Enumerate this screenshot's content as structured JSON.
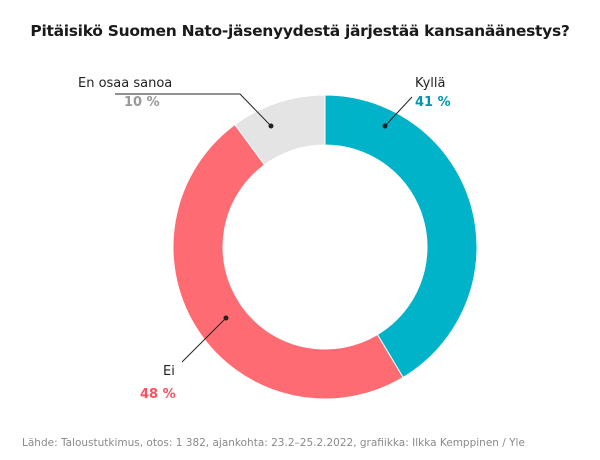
{
  "chart_data": {
    "type": "pie",
    "donut": true,
    "title": "Pitäisikö Suomen Nato-jäsenyydestä järjestää kansanäänestys?",
    "slices": [
      {
        "label": "Kyllä",
        "value": 41,
        "value_label": "41 %",
        "color": "#00b3c8",
        "label_color": "#0096ad"
      },
      {
        "label": "Ei",
        "value": 48,
        "value_label": "48 %",
        "color": "#ff6b73",
        "label_color": "#ff4f5c"
      },
      {
        "label": "En osaa sanoa",
        "value": 10,
        "value_label": "10 %",
        "color": "#e4e4e4",
        "label_color": "#999999"
      }
    ],
    "start_angle": "top, clockwise",
    "source": "Lähde: Taloustutkimus, otos: 1 382, ajankohta: 23.2–25.2.2022, grafiikka: Ilkka Kemppinen / Yle"
  }
}
